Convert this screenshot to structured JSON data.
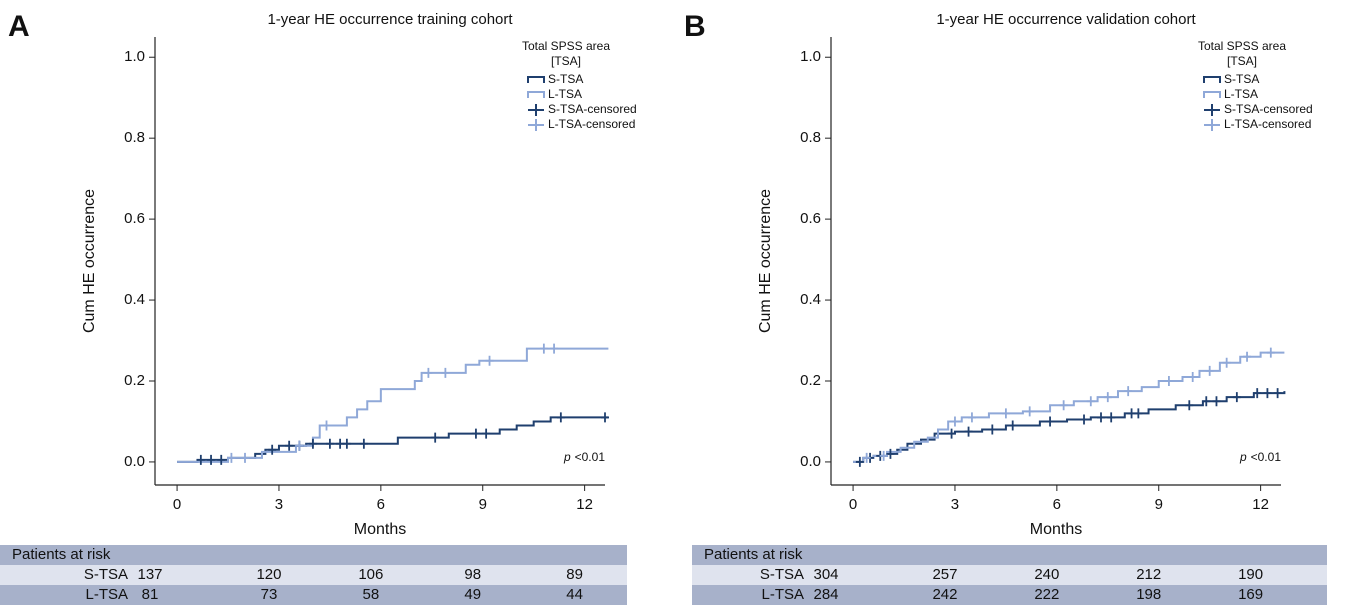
{
  "chart_data": [
    {
      "type": "step",
      "panel_label": "A",
      "title": "1-year HE occurrence training cohort",
      "xlabel": "Months",
      "ylabel": "Cum HE occurrence",
      "xlim": [
        -0.65,
        12.6
      ],
      "ylim": [
        -0.057,
        1.05
      ],
      "xticks": [
        0,
        3,
        6,
        9,
        12
      ],
      "yticks": [
        {
          "value": 0,
          "label": "0.0"
        },
        0.2,
        0.4,
        0.6,
        0.8,
        {
          "value": 1,
          "label": "1.0"
        }
      ],
      "legend_title": [
        "Total SPSS area",
        "[TSA]"
      ],
      "legend_position": "upper right",
      "series": [
        {
          "name": "S-TSA",
          "style": "step",
          "color": "#1f3f6e",
          "x": [
            0,
            0.6,
            1.5,
            2.3,
            2.6,
            3.0,
            3.8,
            6.5,
            8.0,
            9.5,
            10.0,
            10.5,
            11.0,
            12.7
          ],
          "values": [
            0,
            0.005,
            0.01,
            0.02,
            0.03,
            0.04,
            0.045,
            0.06,
            0.07,
            0.08,
            0.09,
            0.1,
            0.11,
            0.11
          ]
        },
        {
          "name": "L-TSA",
          "style": "step",
          "color": "#8fa8d8",
          "x": [
            0,
            1.5,
            2.5,
            3.5,
            4.0,
            4.2,
            5.0,
            5.3,
            5.6,
            6.0,
            7.0,
            7.2,
            8.5,
            8.9,
            10.3,
            12.7
          ],
          "values": [
            0,
            0.01,
            0.025,
            0.04,
            0.06,
            0.09,
            0.11,
            0.13,
            0.15,
            0.18,
            0.2,
            0.22,
            0.24,
            0.25,
            0.28,
            0.28
          ]
        },
        {
          "name": "S-TSA-censored",
          "style": "censor",
          "color": "#1f3f6e",
          "x": [
            0.7,
            1.0,
            1.3,
            2.8,
            3.3,
            3.6,
            4.0,
            4.5,
            4.8,
            5.0,
            5.5,
            7.6,
            8.8,
            9.1,
            11.3,
            12.6
          ],
          "values": [
            0.005,
            0.005,
            0.005,
            0.03,
            0.04,
            0.04,
            0.045,
            0.045,
            0.045,
            0.045,
            0.045,
            0.06,
            0.07,
            0.07,
            0.11,
            0.11
          ]
        },
        {
          "name": "L-TSA-censored",
          "style": "censor",
          "color": "#8fa8d8",
          "x": [
            1.6,
            2.0,
            3.6,
            4.4,
            7.4,
            7.9,
            9.2,
            10.8,
            11.1
          ],
          "values": [
            0.01,
            0.01,
            0.04,
            0.09,
            0.22,
            0.22,
            0.25,
            0.28,
            0.28
          ]
        }
      ],
      "annotation": {
        "italic": "p",
        "text": "<0.01"
      },
      "risk_table": {
        "title": "Patients at risk",
        "rows": [
          {
            "name": "S-TSA",
            "values": [
              137,
              120,
              106,
              98,
              89
            ]
          },
          {
            "name": "L-TSA",
            "values": [
              81,
              73,
              58,
              49,
              44
            ]
          }
        ]
      }
    },
    {
      "type": "step",
      "panel_label": "B",
      "title": "1-year HE occurrence validation cohort",
      "xlabel": "Months",
      "ylabel": "Cum HE occurrence",
      "xlim": [
        -0.65,
        12.6
      ],
      "ylim": [
        -0.057,
        1.05
      ],
      "xticks": [
        0,
        3,
        6,
        9,
        12
      ],
      "yticks": [
        {
          "value": 0,
          "label": "0.0"
        },
        0.2,
        0.4,
        0.6,
        0.8,
        {
          "value": 1,
          "label": "1.0"
        }
      ],
      "legend_title": [
        "Total SPSS area",
        "[TSA]"
      ],
      "legend_position": "upper right",
      "series": [
        {
          "name": "S-TSA",
          "style": "step",
          "color": "#1f3f6e",
          "x": [
            0,
            0.3,
            0.6,
            1.0,
            1.3,
            1.6,
            2.0,
            2.4,
            3.0,
            3.8,
            4.5,
            5.5,
            6.3,
            7.0,
            8.0,
            8.7,
            9.5,
            10.3,
            11.0,
            11.8,
            12.7
          ],
          "values": [
            0,
            0.01,
            0.015,
            0.02,
            0.03,
            0.045,
            0.055,
            0.07,
            0.075,
            0.08,
            0.09,
            0.1,
            0.105,
            0.11,
            0.12,
            0.13,
            0.14,
            0.15,
            0.16,
            0.17,
            0.175
          ]
        },
        {
          "name": "L-TSA",
          "style": "step",
          "color": "#8fa8d8",
          "x": [
            0,
            0.3,
            0.6,
            1.0,
            1.4,
            1.8,
            2.2,
            2.5,
            2.8,
            3.2,
            4.0,
            5.0,
            5.8,
            6.5,
            7.2,
            7.8,
            8.5,
            9.0,
            9.7,
            10.2,
            10.8,
            11.4,
            12.0,
            12.7
          ],
          "values": [
            0,
            0.01,
            0.015,
            0.025,
            0.035,
            0.05,
            0.06,
            0.08,
            0.1,
            0.11,
            0.12,
            0.125,
            0.14,
            0.15,
            0.16,
            0.175,
            0.185,
            0.2,
            0.21,
            0.225,
            0.245,
            0.26,
            0.27,
            0.27
          ]
        },
        {
          "name": "S-TSA-censored",
          "style": "censor",
          "color": "#1f3f6e",
          "x": [
            0.2,
            0.5,
            0.8,
            1.1,
            2.9,
            3.4,
            4.1,
            4.7,
            5.8,
            6.8,
            7.3,
            7.6,
            8.2,
            8.4,
            9.9,
            10.4,
            10.7,
            11.3,
            11.9,
            12.2,
            12.5
          ],
          "values": [
            0,
            0.01,
            0.015,
            0.02,
            0.07,
            0.075,
            0.08,
            0.09,
            0.1,
            0.105,
            0.11,
            0.11,
            0.12,
            0.12,
            0.14,
            0.15,
            0.15,
            0.16,
            0.17,
            0.17,
            0.17
          ]
        },
        {
          "name": "L-TSA-censored",
          "style": "censor",
          "color": "#8fa8d8",
          "x": [
            0.4,
            0.9,
            3.0,
            3.5,
            4.5,
            5.2,
            6.2,
            7.0,
            7.5,
            8.1,
            9.3,
            10.0,
            10.5,
            11.0,
            11.6,
            12.3
          ],
          "values": [
            0.01,
            0.015,
            0.1,
            0.11,
            0.12,
            0.125,
            0.14,
            0.15,
            0.16,
            0.175,
            0.2,
            0.21,
            0.225,
            0.245,
            0.26,
            0.27
          ]
        }
      ],
      "annotation": {
        "italic": "p",
        "text": "<0.01"
      },
      "risk_table": {
        "title": "Patients at risk",
        "rows": [
          {
            "name": "S-TSA",
            "values": [
              304,
              257,
              240,
              212,
              190
            ]
          },
          {
            "name": "L-TSA",
            "values": [
              284,
              242,
              222,
              198,
              169
            ]
          }
        ]
      }
    }
  ]
}
